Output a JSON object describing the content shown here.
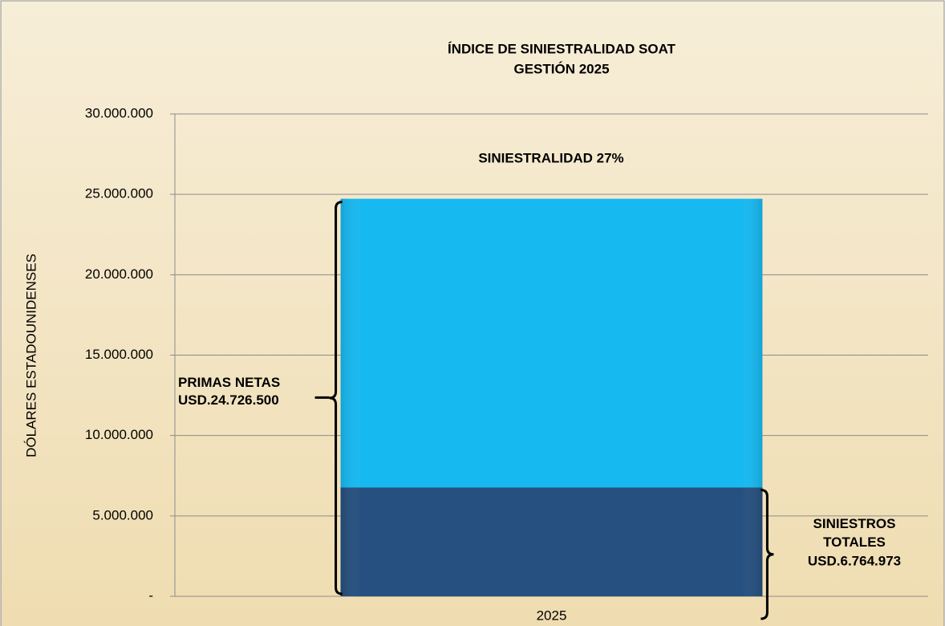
{
  "chart_data": {
    "type": "bar",
    "title": [
      "ÍNDICE DE SINIESTRALIDAD SOAT",
      "GESTIÓN 2025"
    ],
    "annotation": "SINIESTRALIDAD 27%",
    "y_label": "DÓLARES ESTADOUNIDENSES",
    "categories": [
      "2025"
    ],
    "series": [
      {
        "name": "PRIMAS NETAS",
        "color": "#17b9f1",
        "values": [
          24726500
        ],
        "value_labels": [
          "USD.24.726.500"
        ]
      },
      {
        "name": "SINIESTROS TOTALES",
        "color": "#26507f",
        "values": [
          6764973
        ],
        "value_labels": [
          "USD.6.764.973"
        ]
      }
    ],
    "ylim": [
      0,
      30000000
    ],
    "yticks": [
      {
        "value": 0,
        "label": "-"
      },
      {
        "value": 5000000,
        "label": "5.000.000"
      },
      {
        "value": 10000000,
        "label": "10.000.000"
      },
      {
        "value": 15000000,
        "label": "15.000.000"
      },
      {
        "value": 20000000,
        "label": "20.000.000"
      },
      {
        "value": 25000000,
        "label": "25.000.000"
      },
      {
        "value": 30000000,
        "label": "30.000.000"
      }
    ],
    "grid": true
  }
}
